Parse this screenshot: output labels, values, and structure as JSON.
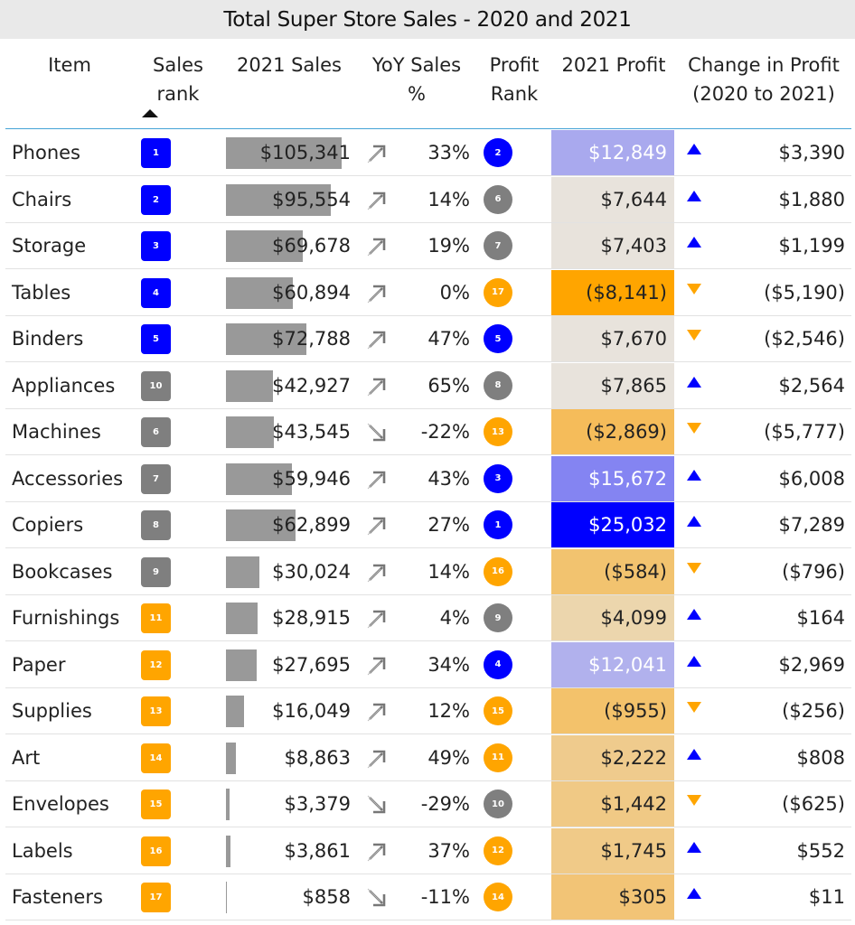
{
  "title": "Total Super Store Sales - 2020 and 2021",
  "headers": {
    "item": "Item",
    "sales_rank_1": "Sales",
    "sales_rank_2": "rank",
    "sales_2021": "2021 Sales",
    "yoy_1": "YoY Sales",
    "yoy_2": "%",
    "profit_rank_1": "Profit",
    "profit_rank_2": "Rank",
    "profit_2021": "2021 Profit",
    "change_1": "Change in Profit",
    "change_2": "(2020 to 2021)"
  },
  "sort": {
    "column": "Sales rank",
    "direction": "ascending"
  },
  "colors": {
    "rank_top": "#0000ff",
    "rank_mid": "#7f7f7f",
    "rank_low": "#ffa500",
    "sales_bar": "#999999",
    "header_line": "#45a3d6",
    "arrow_up": "#0000ff",
    "arrow_down": "#ffa500"
  },
  "rows": [
    {
      "item": "Phones",
      "sales_rank": "1",
      "sales_rank_color": "#0000ff",
      "sales": "$105,341",
      "sales_value": 105341,
      "trend": "up",
      "yoy": "33%",
      "profit_rank": "2",
      "profit_rank_color": "#0000ff",
      "profit": "$12,849",
      "profit_bg": "#a9a9ee",
      "profit_fg": "#ffffff",
      "change_dir": "up",
      "change": "$3,390"
    },
    {
      "item": "Chairs",
      "sales_rank": "2",
      "sales_rank_color": "#0000ff",
      "sales": "$95,554",
      "sales_value": 95554,
      "trend": "up",
      "yoy": "14%",
      "profit_rank": "6",
      "profit_rank_color": "#7f7f7f",
      "profit": "$7,644",
      "profit_bg": "#e8e3dc",
      "profit_fg": "#222222",
      "change_dir": "up",
      "change": "$1,880"
    },
    {
      "item": "Storage",
      "sales_rank": "3",
      "sales_rank_color": "#0000ff",
      "sales": "$69,678",
      "sales_value": 69678,
      "trend": "up",
      "yoy": "19%",
      "profit_rank": "7",
      "profit_rank_color": "#7f7f7f",
      "profit": "$7,403",
      "profit_bg": "#e8e3dc",
      "profit_fg": "#222222",
      "change_dir": "up",
      "change": "$1,199"
    },
    {
      "item": "Tables",
      "sales_rank": "4",
      "sales_rank_color": "#0000ff",
      "sales": "$60,894",
      "sales_value": 60894,
      "trend": "up",
      "yoy": "0%",
      "profit_rank": "17",
      "profit_rank_color": "#ffa500",
      "profit": "($8,141)",
      "profit_bg": "#ffa500",
      "profit_fg": "#222222",
      "change_dir": "down",
      "change": "($5,190)"
    },
    {
      "item": "Binders",
      "sales_rank": "5",
      "sales_rank_color": "#0000ff",
      "sales": "$72,788",
      "sales_value": 72788,
      "trend": "up",
      "yoy": "47%",
      "profit_rank": "5",
      "profit_rank_color": "#0000ff",
      "profit": "$7,670",
      "profit_bg": "#e8e3dc",
      "profit_fg": "#222222",
      "change_dir": "down",
      "change": "($2,546)"
    },
    {
      "item": "Appliances",
      "sales_rank": "10",
      "sales_rank_color": "#7f7f7f",
      "sales": "$42,927",
      "sales_value": 42927,
      "trend": "up",
      "yoy": "65%",
      "profit_rank": "8",
      "profit_rank_color": "#7f7f7f",
      "profit": "$7,865",
      "profit_bg": "#e8e3dc",
      "profit_fg": "#222222",
      "change_dir": "up",
      "change": "$2,564"
    },
    {
      "item": "Machines",
      "sales_rank": "6",
      "sales_rank_color": "#7f7f7f",
      "sales": "$43,545",
      "sales_value": 43545,
      "trend": "down",
      "yoy": "-22%",
      "profit_rank": "13",
      "profit_rank_color": "#ffa500",
      "profit": "($2,869)",
      "profit_bg": "#f5bc5a",
      "profit_fg": "#222222",
      "change_dir": "down",
      "change": "($5,777)"
    },
    {
      "item": "Accessories",
      "sales_rank": "7",
      "sales_rank_color": "#7f7f7f",
      "sales": "$59,946",
      "sales_value": 59946,
      "trend": "up",
      "yoy": "43%",
      "profit_rank": "3",
      "profit_rank_color": "#0000ff",
      "profit": "$15,672",
      "profit_bg": "#8484f2",
      "profit_fg": "#ffffff",
      "change_dir": "up",
      "change": "$6,008"
    },
    {
      "item": "Copiers",
      "sales_rank": "8",
      "sales_rank_color": "#7f7f7f",
      "sales": "$62,899",
      "sales_value": 62899,
      "trend": "up",
      "yoy": "27%",
      "profit_rank": "1",
      "profit_rank_color": "#0000ff",
      "profit": "$25,032",
      "profit_bg": "#0000ff",
      "profit_fg": "#ffffff",
      "change_dir": "up",
      "change": "$7,289"
    },
    {
      "item": "Bookcases",
      "sales_rank": "9",
      "sales_rank_color": "#7f7f7f",
      "sales": "$30,024",
      "sales_value": 30024,
      "trend": "up",
      "yoy": "14%",
      "profit_rank": "16",
      "profit_rank_color": "#ffa500",
      "profit": "($584)",
      "profit_bg": "#f2c36f",
      "profit_fg": "#222222",
      "change_dir": "down",
      "change": "($796)"
    },
    {
      "item": "Furnishings",
      "sales_rank": "11",
      "sales_rank_color": "#ffa500",
      "sales": "$28,915",
      "sales_value": 28915,
      "trend": "up",
      "yoy": "4%",
      "profit_rank": "9",
      "profit_rank_color": "#7f7f7f",
      "profit": "$4,099",
      "profit_bg": "#ecd6ad",
      "profit_fg": "#222222",
      "change_dir": "up",
      "change": "$164"
    },
    {
      "item": "Paper",
      "sales_rank": "12",
      "sales_rank_color": "#ffa500",
      "sales": "$27,695",
      "sales_value": 27695,
      "trend": "up",
      "yoy": "34%",
      "profit_rank": "4",
      "profit_rank_color": "#0000ff",
      "profit": "$12,041",
      "profit_bg": "#b1b1ed",
      "profit_fg": "#ffffff",
      "change_dir": "up",
      "change": "$2,969"
    },
    {
      "item": "Supplies",
      "sales_rank": "13",
      "sales_rank_color": "#ffa500",
      "sales": "$16,049",
      "sales_value": 16049,
      "trend": "up",
      "yoy": "12%",
      "profit_rank": "15",
      "profit_rank_color": "#ffa500",
      "profit": "($955)",
      "profit_bg": "#f3c26b",
      "profit_fg": "#222222",
      "change_dir": "down",
      "change": "($256)"
    },
    {
      "item": "Art",
      "sales_rank": "14",
      "sales_rank_color": "#ffa500",
      "sales": "$8,863",
      "sales_value": 8863,
      "trend": "up",
      "yoy": "49%",
      "profit_rank": "11",
      "profit_rank_color": "#ffa500",
      "profit": "$2,222",
      "profit_bg": "#efcb8d",
      "profit_fg": "#222222",
      "change_dir": "up",
      "change": "$808"
    },
    {
      "item": "Envelopes",
      "sales_rank": "15",
      "sales_rank_color": "#ffa500",
      "sales": "$3,379",
      "sales_value": 3379,
      "trend": "down",
      "yoy": "-29%",
      "profit_rank": "10",
      "profit_rank_color": "#7f7f7f",
      "profit": "$1,442",
      "profit_bg": "#f0c985",
      "profit_fg": "#222222",
      "change_dir": "down",
      "change": "($625)"
    },
    {
      "item": "Labels",
      "sales_rank": "16",
      "sales_rank_color": "#ffa500",
      "sales": "$3,861",
      "sales_value": 3861,
      "trend": "up",
      "yoy": "37%",
      "profit_rank": "12",
      "profit_rank_color": "#ffa500",
      "profit": "$1,745",
      "profit_bg": "#f0ca88",
      "profit_fg": "#222222",
      "change_dir": "up",
      "change": "$552"
    },
    {
      "item": "Fasteners",
      "sales_rank": "17",
      "sales_rank_color": "#ffa500",
      "sales": "$858",
      "sales_value": 858,
      "trend": "down",
      "yoy": "-11%",
      "profit_rank": "14",
      "profit_rank_color": "#ffa500",
      "profit": "$305",
      "profit_bg": "#f2c476",
      "profit_fg": "#222222",
      "change_dir": "up",
      "change": "$11"
    }
  ]
}
